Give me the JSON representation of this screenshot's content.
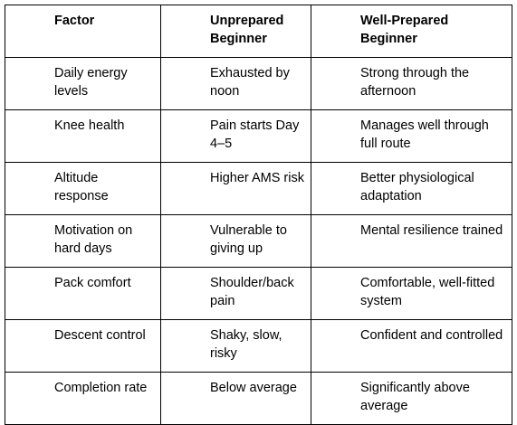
{
  "table": {
    "headers": [
      "Factor",
      "Unprepared Beginner",
      "Well-Prepared Beginner"
    ],
    "rows": [
      [
        "Daily energy levels",
        "Exhausted by noon",
        "Strong through the afternoon"
      ],
      [
        "Knee health",
        "Pain starts Day 4–5",
        "Manages well through full route"
      ],
      [
        "Altitude response",
        "Higher AMS risk",
        "Better physiological adaptation"
      ],
      [
        "Motivation on hard days",
        "Vulnerable to giving up",
        "Mental resilience trained"
      ],
      [
        "Pack comfort",
        "Shoulder/back pain",
        "Comfortable, well-fitted system"
      ],
      [
        "Descent control",
        "Shaky, slow, risky",
        "Confident and controlled"
      ],
      [
        "Completion rate",
        "Below average",
        "Significantly above average"
      ]
    ]
  }
}
